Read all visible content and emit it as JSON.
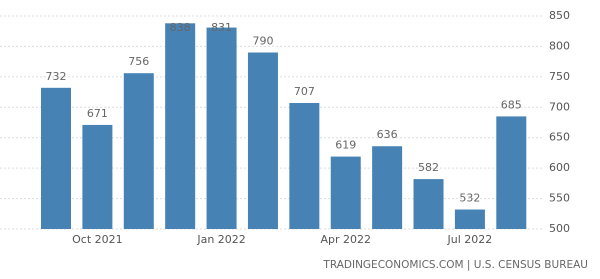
{
  "chart_data": {
    "type": "bar",
    "categories": [
      null,
      "Oct 2021",
      null,
      null,
      "Jan 2022",
      null,
      null,
      "Apr 2022",
      null,
      null,
      "Jul 2022",
      null
    ],
    "values": [
      732,
      671,
      756,
      838,
      831,
      790,
      707,
      619,
      636,
      582,
      532,
      685
    ],
    "color": "#4682b4",
    "ylim": [
      500,
      850
    ],
    "yticks": [
      500,
      550,
      600,
      650,
      700,
      750,
      800,
      850
    ],
    "grid": true,
    "source": "TRADINGECONOMICS.COM | U.S. CENSUS BUREAU"
  }
}
